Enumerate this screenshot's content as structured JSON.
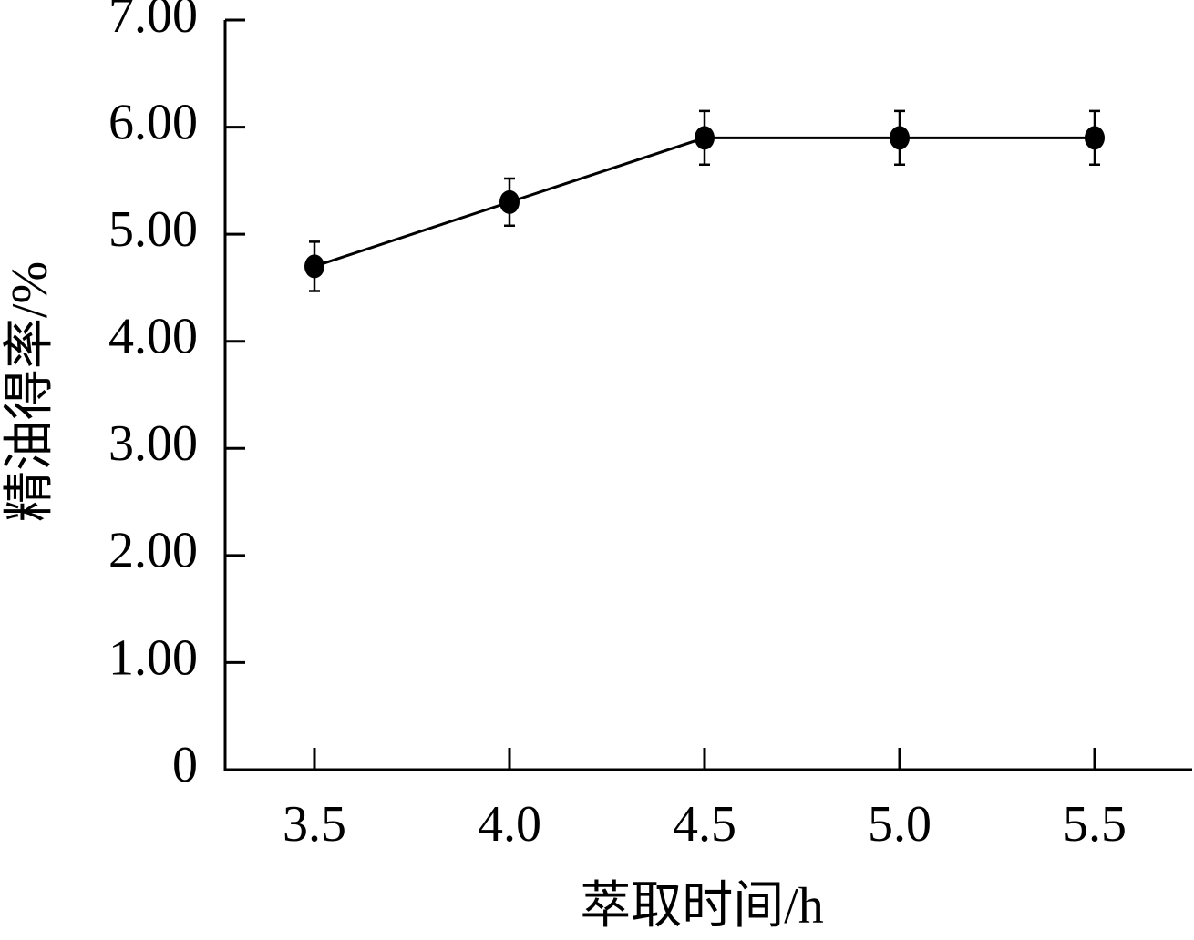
{
  "chart_data": {
    "type": "line",
    "x_label": "萃取时间/h",
    "y_label": "精油得率/%",
    "categories": [
      "3.5",
      "4.0",
      "4.5",
      "5.0",
      "5.5"
    ],
    "values": [
      4.7,
      5.3,
      5.9,
      5.9,
      5.9
    ],
    "errors": [
      0.23,
      0.22,
      0.25,
      0.25,
      0.25
    ],
    "color": "#000000",
    "ylim": [
      0,
      7
    ],
    "yticks": [
      0,
      {
        "value": 1,
        "label": "1.00"
      },
      {
        "value": 2,
        "label": "2.00"
      },
      {
        "value": 3,
        "label": "3.00"
      },
      {
        "value": 4,
        "label": "4.00"
      },
      {
        "value": 5,
        "label": "5.00"
      },
      {
        "value": 6,
        "label": "6.00"
      },
      {
        "value": 7,
        "label": "7.00"
      }
    ]
  }
}
